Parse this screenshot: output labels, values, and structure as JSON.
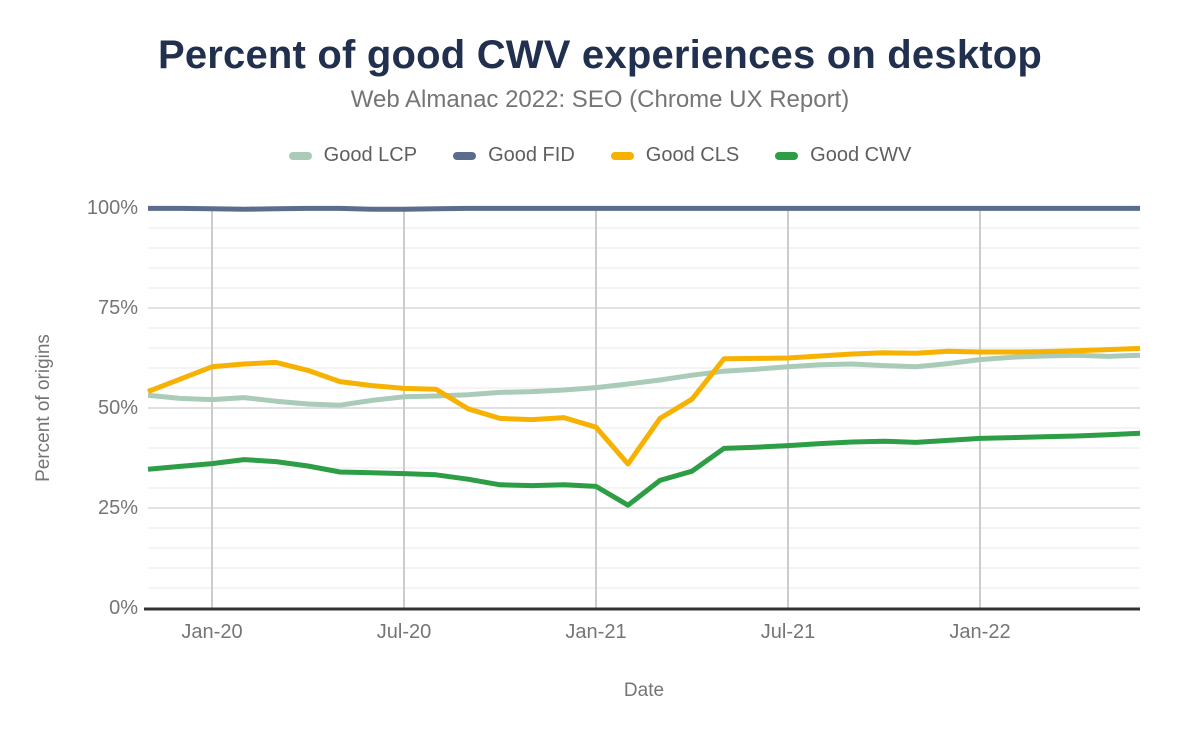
{
  "header": {
    "title": "Percent of good CWV experiences on desktop",
    "subtitle": "Web Almanac 2022: SEO (Chrome UX Report)"
  },
  "colors": {
    "title_text": "#22304f",
    "subtitle_text": "#757575",
    "legend_text": "#5f5f5f",
    "tick_text": "#757575",
    "axis_title_text": "#757575",
    "grid_minor": "#f0f0f0",
    "grid_major": "#e1e1e1",
    "grid_vertical": "#cccccc",
    "axis_line": "#333333"
  },
  "chart_data": {
    "type": "line",
    "title": "Percent of good CWV experiences on desktop",
    "subtitle": "Web Almanac 2022: SEO (Chrome UX Report)",
    "xlabel": "Date",
    "ylabel": "Percent of origins",
    "ylim": [
      0,
      100
    ],
    "y_ticks": [
      0,
      25,
      50,
      75,
      100
    ],
    "y_tick_suffix": "%",
    "y_minor_step": 5,
    "grid": true,
    "legend_position": "top",
    "x": [
      "Nov-19",
      "Dec-19",
      "Jan-20",
      "Feb-20",
      "Mar-20",
      "Apr-20",
      "May-20",
      "Jun-20",
      "Jul-20",
      "Aug-20",
      "Sep-20",
      "Oct-20",
      "Nov-20",
      "Dec-20",
      "Jan-21",
      "Feb-21",
      "Mar-21",
      "Apr-21",
      "May-21",
      "Jun-21",
      "Jul-21",
      "Aug-21",
      "Sep-21",
      "Oct-21",
      "Nov-21",
      "Dec-21",
      "Jan-22",
      "Feb-22",
      "Mar-22",
      "Apr-22",
      "May-22",
      "Jun-22"
    ],
    "x_ticks": [
      {
        "index": 2,
        "label": "Jan-20"
      },
      {
        "index": 8,
        "label": "Jul-20"
      },
      {
        "index": 14,
        "label": "Jan-21"
      },
      {
        "index": 20,
        "label": "Jul-21"
      },
      {
        "index": 26,
        "label": "Jan-22"
      }
    ],
    "series": [
      {
        "name": "Good LCP",
        "color": "#a9cbb7",
        "values": [
          53.2,
          52.4,
          52.1,
          52.6,
          51.7,
          51.0,
          50.7,
          51.9,
          52.8,
          53.0,
          53.3,
          53.9,
          54.1,
          54.5,
          55.1,
          56.0,
          57.0,
          58.2,
          59.2,
          59.7,
          60.3,
          60.8,
          61.0,
          60.6,
          60.3,
          61.1,
          62.1,
          62.7,
          63.0,
          63.2,
          62.9,
          63.2
        ]
      },
      {
        "name": "Good FID",
        "color": "#5b6d8c",
        "values": [
          99.9,
          99.9,
          99.8,
          99.7,
          99.8,
          99.9,
          99.9,
          99.7,
          99.7,
          99.8,
          99.9,
          99.9,
          99.9,
          99.9,
          99.9,
          99.9,
          99.9,
          99.9,
          99.9,
          99.9,
          99.9,
          99.9,
          99.9,
          99.9,
          99.9,
          99.9,
          99.9,
          99.9,
          99.9,
          99.9,
          99.9,
          99.9
        ]
      },
      {
        "name": "Good CLS",
        "color": "#f7b201",
        "values": [
          54.1,
          57.2,
          60.3,
          61.0,
          61.4,
          59.4,
          56.6,
          55.6,
          54.9,
          54.7,
          49.8,
          47.4,
          47.1,
          47.6,
          45.2,
          36.0,
          47.4,
          52.2,
          62.3,
          62.4,
          62.5,
          63.0,
          63.5,
          63.8,
          63.7,
          64.2,
          64.0,
          64.0,
          64.1,
          64.3,
          64.6,
          64.9
        ]
      },
      {
        "name": "Good CWV",
        "color": "#2d9e46",
        "values": [
          34.7,
          35.4,
          36.1,
          37.1,
          36.6,
          35.5,
          34.0,
          33.8,
          33.6,
          33.3,
          32.2,
          30.8,
          30.6,
          30.8,
          30.4,
          25.7,
          31.9,
          34.2,
          39.9,
          40.2,
          40.6,
          41.1,
          41.5,
          41.7,
          41.4,
          41.9,
          42.4,
          42.6,
          42.8,
          43.0,
          43.3,
          43.7
        ]
      }
    ]
  }
}
